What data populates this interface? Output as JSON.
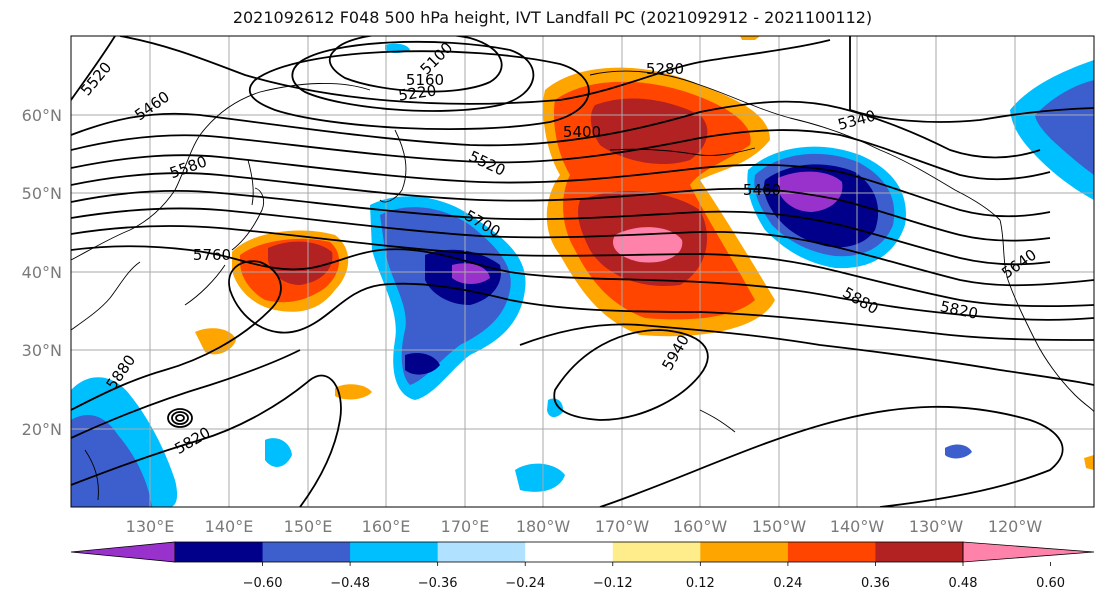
{
  "title": "2021092612 F048 500 hPa height, IVT Landfall PC (2021092912 - 2021100112)",
  "map": {
    "lon_labels": [
      "130°E",
      "140°E",
      "150°E",
      "160°E",
      "170°E",
      "180°W",
      "170°W",
      "160°W",
      "150°W",
      "140°W",
      "130°W",
      "120°W"
    ],
    "lat_labels": [
      "60°N",
      "50°N",
      "40°N",
      "30°N",
      "20°N"
    ],
    "grid": true,
    "contour_labels": [
      "5520",
      "5460",
      "5580",
      "5760",
      "5880",
      "5820",
      "5100",
      "5160",
      "5220",
      "5280",
      "5400",
      "5520",
      "5700",
      "5460",
      "5340",
      "5640",
      "5880",
      "5820",
      "5940"
    ]
  },
  "colorbar": {
    "ticks": [
      "−0.60",
      "−0.48",
      "−0.36",
      "−0.24",
      "−0.12",
      "0.12",
      "0.24",
      "0.36",
      "0.48",
      "0.60"
    ],
    "colors": [
      "#9932cc",
      "#00008b",
      "#3d5fcd",
      "#00bfff",
      "#b0e2ff",
      "#ffffff",
      "#ffec8b",
      "#ffa500",
      "#ff4500",
      "#b22222",
      "#ff82ab"
    ],
    "extend": "both"
  },
  "colors": {
    "grid": "#aaaaaa",
    "contour": "#000000",
    "frame": "#000000"
  }
}
